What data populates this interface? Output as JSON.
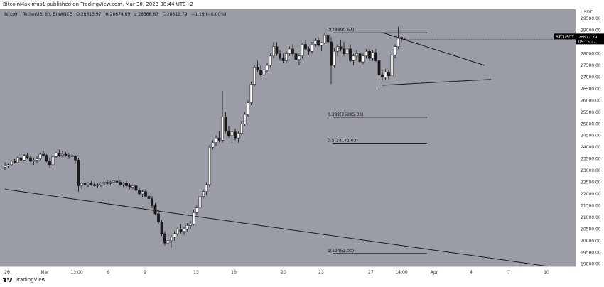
{
  "header": {
    "publisher_text": "BitcoinMaximus1 published on TradingView.com, Mar 30, 2023 08:44 UTC+2"
  },
  "symbol_bar": {
    "symbol": "Bitcoin / TetherUS, 6h, BINANCE",
    "open": "O 28613.97",
    "high": "H 28674.69",
    "low": "L 28566.67",
    "close": "C 28612.79",
    "change": "−1.19 (−0.00%)"
  },
  "price_axis": {
    "currency": "USDT",
    "labels": [
      "29500.00",
      "29000.00",
      "28000.00",
      "27500.00",
      "27000.00",
      "26500.00",
      "26000.00",
      "25500.00",
      "25000.00",
      "24500.00",
      "24000.00",
      "23500.00",
      "23000.00",
      "22500.00",
      "22000.00",
      "21500.00",
      "21000.00",
      "20500.00",
      "20000.00",
      "19500.00",
      "19000.00"
    ],
    "current_price_tag": {
      "ticker": "BTCUSDT",
      "price": "28612.79",
      "countdown": "05:15:27"
    }
  },
  "time_axis": {
    "labels": [
      "26",
      "Mar",
      "13:00",
      "6",
      "9",
      "13",
      "16",
      "20",
      "23",
      "27",
      "14:00",
      "Apr",
      "4",
      "7",
      "10"
    ]
  },
  "footer": {
    "brand": "TradingView"
  },
  "colors": {
    "chart_bg": "#9a9da5",
    "candle_up": "#ffffff",
    "candle_down": "#1a1a1a",
    "line": "#1a1a1a",
    "tag_bg": "#000000"
  },
  "chart_data": {
    "type": "candlestick",
    "ylim": [
      18900,
      29900
    ],
    "fib_levels": [
      {
        "label": "0(28890.67)",
        "value": 28890.67
      },
      {
        "label": "0.382(25285.32)",
        "value": 25285.32
      },
      {
        "label": "0.5(24171.63)",
        "value": 24171.63
      },
      {
        "label": "1(19452.00)",
        "value": 19452.0
      }
    ],
    "trendlines": [
      {
        "name": "support",
        "from": {
          "x": 0,
          "y": 22200
        },
        "to": {
          "x": 170,
          "y": 18900
        }
      },
      {
        "name": "triangle-upper",
        "from": {
          "x": 118,
          "y": 28900
        },
        "to": {
          "x": 150,
          "y": 27500
        }
      },
      {
        "name": "triangle-lower",
        "from": {
          "x": 118,
          "y": 26650
        },
        "to": {
          "x": 152,
          "y": 26900
        }
      }
    ],
    "candles": [
      [
        23150,
        23350,
        23000,
        23200
      ],
      [
        23200,
        23300,
        23100,
        23250
      ],
      [
        23250,
        23450,
        23200,
        23400
      ],
      [
        23400,
        23500,
        23300,
        23350
      ],
      [
        23350,
        23600,
        23300,
        23550
      ],
      [
        23550,
        23700,
        23400,
        23450
      ],
      [
        23450,
        23700,
        23400,
        23650
      ],
      [
        23650,
        23750,
        23500,
        23550
      ],
      [
        23550,
        23650,
        23350,
        23400
      ],
      [
        23400,
        23550,
        23250,
        23450
      ],
      [
        23450,
        23600,
        23300,
        23500
      ],
      [
        23500,
        23750,
        23450,
        23700
      ],
      [
        23700,
        23850,
        23600,
        23650
      ],
      [
        23650,
        23700,
        23350,
        23400
      ],
      [
        23400,
        23550,
        23100,
        23250
      ],
      [
        23250,
        23650,
        23200,
        23600
      ],
      [
        23600,
        23800,
        23550,
        23750
      ],
      [
        23750,
        23900,
        23600,
        23650
      ],
      [
        23650,
        23850,
        23550,
        23700
      ],
      [
        23700,
        23800,
        23600,
        23650
      ],
      [
        23650,
        23750,
        23500,
        23600
      ],
      [
        23600,
        23700,
        23500,
        23650
      ],
      [
        23600,
        23650,
        23300,
        23450
      ],
      [
        23450,
        23550,
        22100,
        22350
      ],
      [
        22350,
        22500,
        22200,
        22450
      ],
      [
        22450,
        22550,
        22300,
        22400
      ],
      [
        22400,
        22500,
        22300,
        22450
      ],
      [
        22450,
        22550,
        22350,
        22400
      ],
      [
        22400,
        22500,
        22300,
        22350
      ],
      [
        22350,
        22450,
        22250,
        22400
      ],
      [
        22400,
        22500,
        22300,
        22450
      ],
      [
        22450,
        22550,
        22400,
        22500
      ],
      [
        22500,
        22600,
        22400,
        22450
      ],
      [
        22450,
        22550,
        22350,
        22500
      ],
      [
        22500,
        22600,
        22450,
        22550
      ],
      [
        22550,
        22650,
        22450,
        22500
      ],
      [
        22500,
        22600,
        22350,
        22400
      ],
      [
        22400,
        22500,
        22300,
        22450
      ],
      [
        22450,
        22550,
        22300,
        22350
      ],
      [
        22350,
        22450,
        22200,
        22300
      ],
      [
        22300,
        22400,
        22200,
        22350
      ],
      [
        22350,
        22450,
        22100,
        22150
      ],
      [
        22150,
        22250,
        21950,
        22000
      ],
      [
        22000,
        22150,
        21850,
        22100
      ],
      [
        22100,
        22200,
        21850,
        21900
      ],
      [
        21900,
        22050,
        21700,
        21800
      ],
      [
        21800,
        21900,
        21400,
        21500
      ],
      [
        21500,
        21600,
        21100,
        21150
      ],
      [
        21150,
        21300,
        20700,
        20800
      ],
      [
        20800,
        20900,
        20200,
        20300
      ],
      [
        20300,
        20400,
        19800,
        19900
      ],
      [
        19900,
        20100,
        19600,
        20000
      ],
      [
        20000,
        20250,
        19700,
        20150
      ],
      [
        20150,
        20400,
        20000,
        20300
      ],
      [
        20300,
        20600,
        20200,
        20500
      ],
      [
        20500,
        20700,
        20300,
        20400
      ],
      [
        20400,
        20600,
        20250,
        20500
      ],
      [
        20500,
        20750,
        20400,
        20650
      ],
      [
        20650,
        20850,
        20500,
        20700
      ],
      [
        20700,
        21300,
        20650,
        21200
      ],
      [
        21200,
        21500,
        21100,
        21400
      ],
      [
        21400,
        22000,
        21350,
        21900
      ],
      [
        21900,
        22200,
        21800,
        22100
      ],
      [
        22100,
        22500,
        21950,
        22400
      ],
      [
        22400,
        24100,
        22300,
        24000
      ],
      [
        24000,
        24300,
        23900,
        24200
      ],
      [
        24200,
        24500,
        24050,
        24400
      ],
      [
        24400,
        24700,
        24200,
        24300
      ],
      [
        24300,
        26400,
        24200,
        25300
      ],
      [
        25300,
        25500,
        24600,
        24700
      ],
      [
        24700,
        24900,
        24400,
        24500
      ],
      [
        24500,
        24800,
        24200,
        24650
      ],
      [
        24650,
        24800,
        24300,
        24400
      ],
      [
        24400,
        24700,
        24200,
        24600
      ],
      [
        24600,
        25100,
        24500,
        25000
      ],
      [
        25000,
        25500,
        24900,
        25400
      ],
      [
        25400,
        26000,
        25300,
        25900
      ],
      [
        25900,
        26800,
        25800,
        26700
      ],
      [
        26700,
        27500,
        26600,
        27400
      ],
      [
        27400,
        27700,
        27200,
        27300
      ],
      [
        27300,
        27500,
        27000,
        27100
      ],
      [
        27100,
        27400,
        26950,
        27300
      ],
      [
        27300,
        27600,
        27200,
        27500
      ],
      [
        27500,
        28000,
        27400,
        27900
      ],
      [
        27900,
        28500,
        27800,
        28300
      ],
      [
        28300,
        28500,
        27900,
        28000
      ],
      [
        28000,
        28150,
        27700,
        27800
      ],
      [
        27800,
        28000,
        27600,
        27700
      ],
      [
        27700,
        28100,
        27600,
        28000
      ],
      [
        28000,
        28300,
        27900,
        28200
      ],
      [
        28200,
        28400,
        27900,
        28000
      ],
      [
        28000,
        28200,
        27700,
        27750
      ],
      [
        27750,
        28000,
        27500,
        27900
      ],
      [
        27900,
        28450,
        27800,
        28400
      ],
      [
        28400,
        28600,
        28150,
        28200
      ],
      [
        28200,
        28300,
        27950,
        28100
      ],
      [
        28100,
        28500,
        28000,
        28400
      ],
      [
        28400,
        28650,
        28300,
        28550
      ],
      [
        28550,
        28700,
        28300,
        28350
      ],
      [
        28350,
        28500,
        28100,
        28450
      ],
      [
        28450,
        28900,
        28400,
        28800
      ],
      [
        28800,
        28850,
        28400,
        28500
      ],
      [
        28500,
        28700,
        26700,
        27500
      ],
      [
        27500,
        28250,
        27400,
        28100
      ],
      [
        28100,
        28400,
        27900,
        28300
      ],
      [
        28300,
        28600,
        28100,
        28200
      ],
      [
        28200,
        28500,
        27900,
        28000
      ],
      [
        28000,
        28300,
        27800,
        28200
      ],
      [
        28200,
        28400,
        27650,
        27700
      ],
      [
        27700,
        28000,
        27500,
        27900
      ],
      [
        27900,
        28150,
        27700,
        28000
      ],
      [
        28000,
        28100,
        27600,
        27650
      ],
      [
        27650,
        28000,
        27550,
        27900
      ],
      [
        27900,
        28200,
        27800,
        28100
      ],
      [
        28100,
        28200,
        27700,
        27800
      ],
      [
        27800,
        28150,
        27700,
        28050
      ],
      [
        28050,
        28200,
        27650,
        27700
      ],
      [
        27700,
        28000,
        26600,
        27100
      ],
      [
        27100,
        27300,
        26850,
        27000
      ],
      [
        27000,
        27350,
        26900,
        27200
      ],
      [
        27200,
        27300,
        26900,
        27050
      ],
      [
        27050,
        28050,
        26950,
        27950
      ],
      [
        27950,
        28400,
        27800,
        28300
      ],
      [
        28300,
        29150,
        28200,
        28650
      ],
      [
        28650,
        28750,
        28500,
        28700
      ],
      [
        28613.97,
        28674.69,
        28566.67,
        28612.79
      ]
    ]
  }
}
